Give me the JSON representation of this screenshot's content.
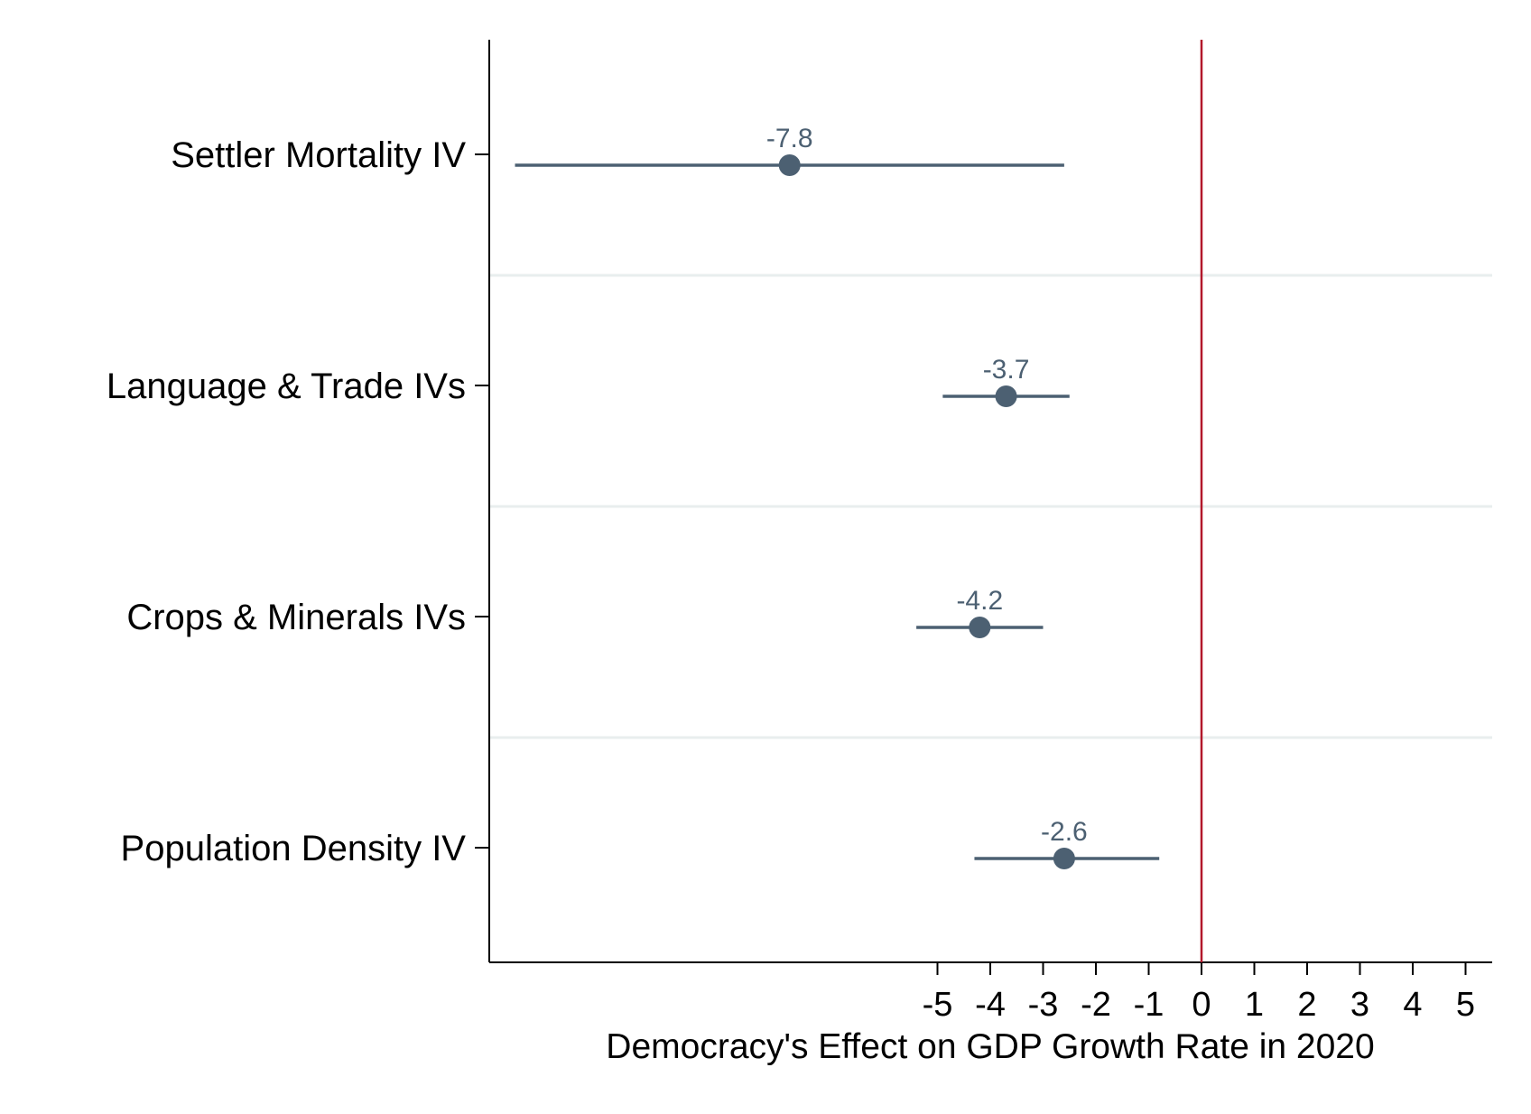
{
  "chart_data": {
    "type": "scatter",
    "subtype": "coefficient-plot-with-confidence-intervals",
    "title": "",
    "xlabel": "Democracy's Effect on GDP Growth Rate in 2020",
    "ylabel": "",
    "xlim": [
      -13.5,
      5.5
    ],
    "xticks": [
      -5,
      -4,
      -3,
      -2,
      -1,
      0,
      1,
      2,
      3,
      4,
      5
    ],
    "xtick_labels": [
      "-5",
      "-4",
      "-3",
      "-2",
      "-1",
      "0",
      "1",
      "2",
      "3",
      "4",
      "5"
    ],
    "reference_line": {
      "x": 0,
      "color": "#b2182b"
    },
    "grid": "horizontal separators between categories",
    "legend": "none",
    "series_color": "#4c6072",
    "categories": [
      "Settler Mortality IV",
      "Language & Trade IVs",
      "Crops & Minerals IVs",
      "Population Density IV"
    ],
    "estimates": [
      -7.8,
      -3.7,
      -4.2,
      -2.6
    ],
    "estimate_labels": [
      "-7.8",
      "-3.7",
      "-4.2",
      "-2.6"
    ],
    "ci_low": [
      -13.0,
      -4.9,
      -5.4,
      -4.3
    ],
    "ci_high": [
      -2.6,
      -2.5,
      -3.0,
      -0.8
    ]
  }
}
